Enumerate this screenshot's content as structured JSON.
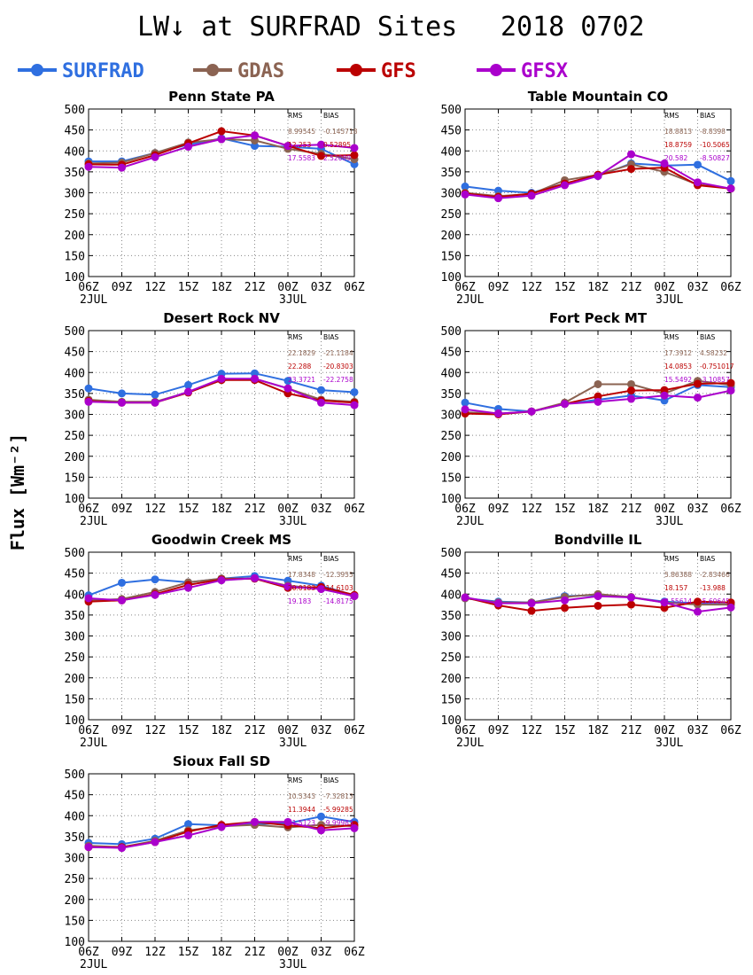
{
  "title": "LW↓ at SURFRAD Sites",
  "date": "2018 0702",
  "ylabel": "Flux [Wm⁻²]",
  "colors": {
    "SURFRAD": "#2f6fe0",
    "GDAS": "#8b6352",
    "GFS": "#bb0000",
    "GFSX": "#aa00cc"
  },
  "legend": [
    "SURFRAD",
    "GDAS",
    "GFS",
    "GFSX"
  ],
  "stats_headers": {
    "rms": "RMS",
    "bias": "BIAS"
  },
  "xticks": [
    "06Z",
    "09Z",
    "12Z",
    "15Z",
    "18Z",
    "21Z",
    "00Z",
    "03Z",
    "06Z"
  ],
  "xsub": [
    {
      "index": 0,
      "text": "2JUL"
    },
    {
      "index": 6,
      "text": "3JUL"
    }
  ],
  "chart_data": [
    {
      "type": "line",
      "title": "Penn State PA",
      "ylim": [
        100,
        500
      ],
      "yticks": [
        100,
        150,
        200,
        250,
        300,
        350,
        400,
        450,
        500
      ],
      "grid": true,
      "categories": [
        "06Z",
        "09Z",
        "12Z",
        "15Z",
        "18Z",
        "21Z",
        "00Z",
        "03Z",
        "06Z"
      ],
      "series": [
        {
          "name": "SURFRAD",
          "values": [
            375,
            375,
            395,
            415,
            430,
            412,
            410,
            405,
            368
          ]
        },
        {
          "name": "GDAS",
          "values": [
            370,
            372,
            395,
            420,
            428,
            425,
            405,
            393,
            380
          ]
        },
        {
          "name": "GFS",
          "values": [
            368,
            367,
            390,
            418,
            447,
            437,
            412,
            388,
            390
          ]
        },
        {
          "name": "GFSX",
          "values": [
            362,
            360,
            385,
            410,
            428,
            437,
            412,
            415,
            407
          ]
        }
      ],
      "stats": [
        {
          "series": "GDAS",
          "rms": "8.99545",
          "bias": "-0.145718"
        },
        {
          "series": "GFS",
          "rms": "12.253",
          "bias": "0.52895"
        },
        {
          "series": "GFSX",
          "rms": "17.5583",
          "bias": "2.52089"
        }
      ]
    },
    {
      "type": "line",
      "title": "Table Mountain CO",
      "ylim": [
        100,
        500
      ],
      "yticks": [
        100,
        150,
        200,
        250,
        300,
        350,
        400,
        450,
        500
      ],
      "grid": true,
      "categories": [
        "06Z",
        "09Z",
        "12Z",
        "15Z",
        "18Z",
        "21Z",
        "00Z",
        "03Z",
        "06Z"
      ],
      "series": [
        {
          "name": "SURFRAD",
          "values": [
            315,
            305,
            300,
            322,
            340,
            370,
            365,
            367,
            328
          ]
        },
        {
          "name": "GDAS",
          "values": [
            300,
            292,
            297,
            330,
            343,
            368,
            350,
            320,
            310
          ]
        },
        {
          "name": "GFS",
          "values": [
            298,
            290,
            298,
            322,
            343,
            357,
            360,
            318,
            310
          ]
        },
        {
          "name": "GFSX",
          "values": [
            296,
            287,
            293,
            318,
            340,
            392,
            370,
            325,
            310
          ]
        }
      ],
      "stats": [
        {
          "series": "GDAS",
          "rms": "18.8813",
          "bias": "-8.8398"
        },
        {
          "series": "GFS",
          "rms": "18.8759",
          "bias": "-10.5065"
        },
        {
          "series": "GFSX",
          "rms": "20.582",
          "bias": "-8.50827"
        }
      ]
    },
    {
      "type": "line",
      "title": "Desert Rock NV",
      "ylim": [
        100,
        500
      ],
      "yticks": [
        100,
        150,
        200,
        250,
        300,
        350,
        400,
        450,
        500
      ],
      "grid": true,
      "categories": [
        "06Z",
        "09Z",
        "12Z",
        "15Z",
        "18Z",
        "21Z",
        "00Z",
        "03Z",
        "06Z"
      ],
      "series": [
        {
          "name": "SURFRAD",
          "values": [
            362,
            350,
            347,
            370,
            397,
            398,
            380,
            358,
            353
          ]
        },
        {
          "name": "GDAS",
          "values": [
            335,
            330,
            330,
            353,
            382,
            385,
            362,
            335,
            330
          ]
        },
        {
          "name": "GFS",
          "values": [
            332,
            328,
            328,
            352,
            382,
            382,
            350,
            333,
            328
          ]
        },
        {
          "name": "GFSX",
          "values": [
            330,
            328,
            328,
            354,
            385,
            385,
            362,
            328,
            322
          ]
        }
      ],
      "stats": [
        {
          "series": "GDAS",
          "rms": "22.1829",
          "bias": "-21.1184"
        },
        {
          "series": "GFS",
          "rms": "22.288",
          "bias": "-20.8303"
        },
        {
          "series": "GFSX",
          "rms": "23.3721",
          "bias": "-22.2758"
        }
      ]
    },
    {
      "type": "line",
      "title": "Fort Peck MT",
      "ylim": [
        100,
        500
      ],
      "yticks": [
        100,
        150,
        200,
        250,
        300,
        350,
        400,
        450,
        500
      ],
      "grid": true,
      "categories": [
        "06Z",
        "09Z",
        "12Z",
        "15Z",
        "18Z",
        "21Z",
        "00Z",
        "03Z",
        "06Z"
      ],
      "series": [
        {
          "name": "SURFRAD",
          "values": [
            328,
            313,
            307,
            325,
            335,
            345,
            333,
            370,
            365
          ]
        },
        {
          "name": "GDAS",
          "values": [
            305,
            302,
            307,
            328,
            372,
            372,
            350,
            380,
            370
          ]
        },
        {
          "name": "GFS",
          "values": [
            302,
            300,
            307,
            325,
            343,
            357,
            358,
            373,
            375
          ]
        },
        {
          "name": "GFSX",
          "values": [
            312,
            302,
            307,
            325,
            330,
            337,
            345,
            340,
            357
          ]
        }
      ],
      "stats": [
        {
          "series": "GDAS",
          "rms": "17.3912",
          "bias": "4.58232"
        },
        {
          "series": "GFS",
          "rms": "14.0853",
          "bias": "-0.751017"
        },
        {
          "series": "GFSX",
          "rms": "15.5492",
          "bias": "-3.10857"
        }
      ]
    },
    {
      "type": "line",
      "title": "Goodwin Creek MS",
      "ylim": [
        100,
        500
      ],
      "yticks": [
        100,
        150,
        200,
        250,
        300,
        350,
        400,
        450,
        500
      ],
      "grid": true,
      "categories": [
        "06Z",
        "09Z",
        "12Z",
        "15Z",
        "18Z",
        "21Z",
        "00Z",
        "03Z",
        "06Z"
      ],
      "series": [
        {
          "name": "SURFRAD",
          "values": [
            397,
            427,
            435,
            428,
            437,
            443,
            432,
            420,
            397
          ]
        },
        {
          "name": "GDAS",
          "values": [
            385,
            388,
            405,
            428,
            437,
            437,
            420,
            413,
            395
          ]
        },
        {
          "name": "GFS",
          "values": [
            382,
            385,
            400,
            422,
            435,
            437,
            415,
            417,
            398
          ]
        },
        {
          "name": "GFSX",
          "values": [
            390,
            385,
            398,
            415,
            433,
            438,
            418,
            412,
            395
          ]
        }
      ],
      "stats": [
        {
          "series": "GDAS",
          "rms": "17.8348",
          "bias": "-12.3955"
        },
        {
          "series": "GFS",
          "rms": "20.0183",
          "bias": "-14.6103"
        },
        {
          "series": "GFSX",
          "rms": "19.183",
          "bias": "-14.8175"
        }
      ]
    },
    {
      "type": "line",
      "title": "Bondville IL",
      "ylim": [
        100,
        500
      ],
      "yticks": [
        100,
        150,
        200,
        250,
        300,
        350,
        400,
        450,
        500
      ],
      "grid": true,
      "categories": [
        "06Z",
        "09Z",
        "12Z",
        "15Z",
        "18Z",
        "21Z",
        "00Z",
        "03Z",
        "06Z"
      ],
      "series": [
        {
          "name": "SURFRAD",
          "values": [
            390,
            382,
            380,
            395,
            398,
            392,
            382,
            378,
            375
          ]
        },
        {
          "name": "GDAS",
          "values": [
            390,
            380,
            380,
            393,
            400,
            393,
            380,
            375,
            375
          ]
        },
        {
          "name": "GFS",
          "values": [
            392,
            373,
            360,
            367,
            372,
            375,
            367,
            382,
            380
          ]
        },
        {
          "name": "GFSX",
          "values": [
            392,
            378,
            378,
            385,
            395,
            392,
            380,
            358,
            368
          ]
        }
      ],
      "stats": [
        {
          "series": "GDAS",
          "rms": "5.86388",
          "bias": "-2.83466"
        },
        {
          "series": "GFS",
          "rms": "18.157",
          "bias": "-13.988"
        },
        {
          "series": "GFSX",
          "rms": "8.55614",
          "bias": "-5.60645"
        }
      ]
    },
    {
      "type": "line",
      "title": "Sioux Fall SD",
      "ylim": [
        100,
        500
      ],
      "yticks": [
        100,
        150,
        200,
        250,
        300,
        350,
        400,
        450,
        500
      ],
      "grid": true,
      "categories": [
        "06Z",
        "09Z",
        "12Z",
        "15Z",
        "18Z",
        "21Z",
        "00Z",
        "03Z",
        "06Z"
      ],
      "series": [
        {
          "name": "SURFRAD",
          "values": [
            335,
            332,
            345,
            380,
            377,
            380,
            382,
            398,
            385
          ]
        },
        {
          "name": "GDAS",
          "values": [
            328,
            325,
            340,
            365,
            375,
            378,
            372,
            378,
            375
          ]
        },
        {
          "name": "GFS",
          "values": [
            325,
            325,
            337,
            362,
            378,
            385,
            377,
            370,
            378
          ]
        },
        {
          "name": "GFSX",
          "values": [
            325,
            323,
            337,
            353,
            373,
            385,
            385,
            365,
            370
          ]
        }
      ],
      "stats": [
        {
          "series": "GDAS",
          "rms": "10.5343",
          "bias": "-7.32813"
        },
        {
          "series": "GFS",
          "rms": "11.3944",
          "bias": "-5.99285"
        },
        {
          "series": "GFSX",
          "rms": "11.5123",
          "bias": "-9.99983"
        }
      ]
    }
  ]
}
